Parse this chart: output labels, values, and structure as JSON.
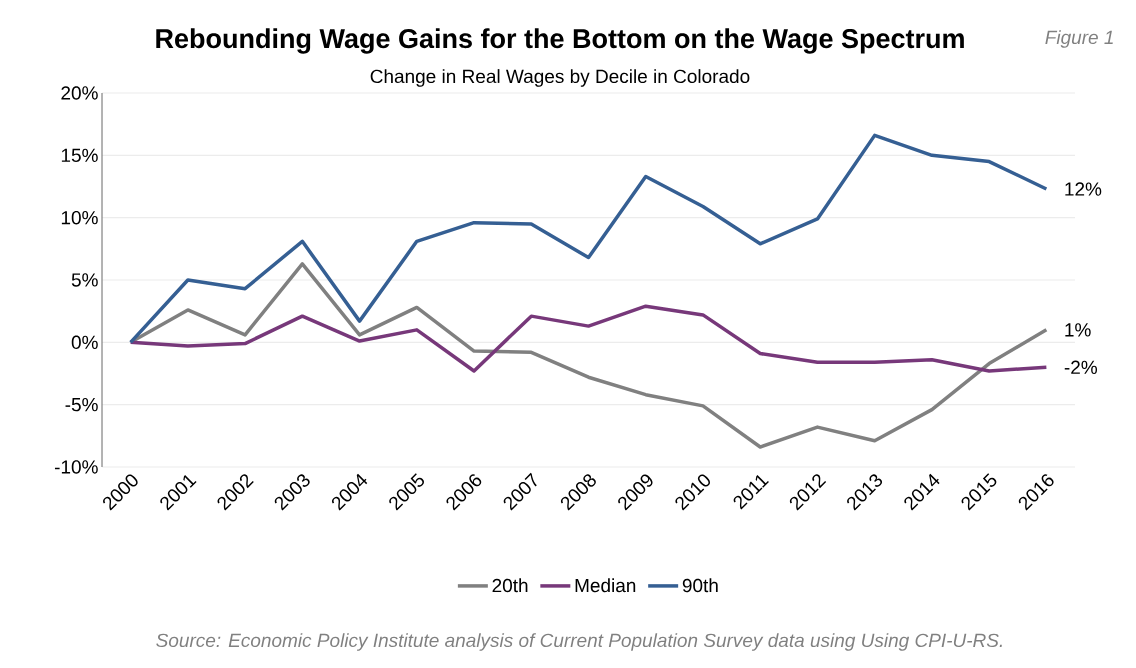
{
  "chart_data": {
    "type": "line",
    "title": "Rebounding Wage Gains for the Bottom on the Wage Spectrum",
    "subtitle": "Change in Real Wages by Decile in Colorado",
    "categories": [
      "2000",
      "2001",
      "2002",
      "2003",
      "2004",
      "2005",
      "2006",
      "2007",
      "2008",
      "2009",
      "2010",
      "2011",
      "2012",
      "2013",
      "2014",
      "2015",
      "2016"
    ],
    "series": [
      {
        "name": "20th",
        "color": "#808080",
        "values": [
          0,
          2.6,
          0.6,
          6.3,
          0.6,
          2.8,
          -0.7,
          -0.8,
          -2.8,
          -4.2,
          -5.1,
          -8.4,
          -6.8,
          -7.9,
          -5.4,
          -1.7,
          1.0
        ]
      },
      {
        "name": "Median",
        "color": "#77387a",
        "values": [
          0,
          -0.3,
          -0.1,
          2.1,
          0.1,
          1.0,
          -2.3,
          2.1,
          1.3,
          2.9,
          2.2,
          -0.9,
          -1.6,
          -1.6,
          -1.4,
          -2.3,
          -2.0
        ]
      },
      {
        "name": "90th",
        "color": "#355f93",
        "values": [
          0,
          5.0,
          4.3,
          8.1,
          1.7,
          8.1,
          9.6,
          9.5,
          6.8,
          13.3,
          10.9,
          7.9,
          9.9,
          16.6,
          15.0,
          14.5,
          12.3
        ]
      }
    ],
    "ylim": [
      -10,
      20
    ],
    "yticks": [
      {
        "value": -10,
        "label": "-10%"
      },
      {
        "value": -5,
        "label": "-5%"
      },
      {
        "value": 0,
        "label": "0%"
      },
      {
        "value": 5,
        "label": "5%"
      },
      {
        "value": 10,
        "label": "10%"
      },
      {
        "value": 15,
        "label": "15%"
      },
      {
        "value": 20,
        "label": "20%"
      }
    ],
    "grid": "y",
    "legend": "bottom",
    "marker": "none",
    "line_style": "solid",
    "annotations": [
      {
        "text": "12%",
        "x": "2016",
        "y": 12.3
      },
      {
        "text": "1%",
        "x": "2016",
        "y": 1.0
      },
      {
        "text": "-2%",
        "x": "2016",
        "y": -2.0
      },
      "Figure 1",
      "Source: Economic Policy Institute analysis of Current Population Survey data using Using CPI-U-RS."
    ]
  }
}
